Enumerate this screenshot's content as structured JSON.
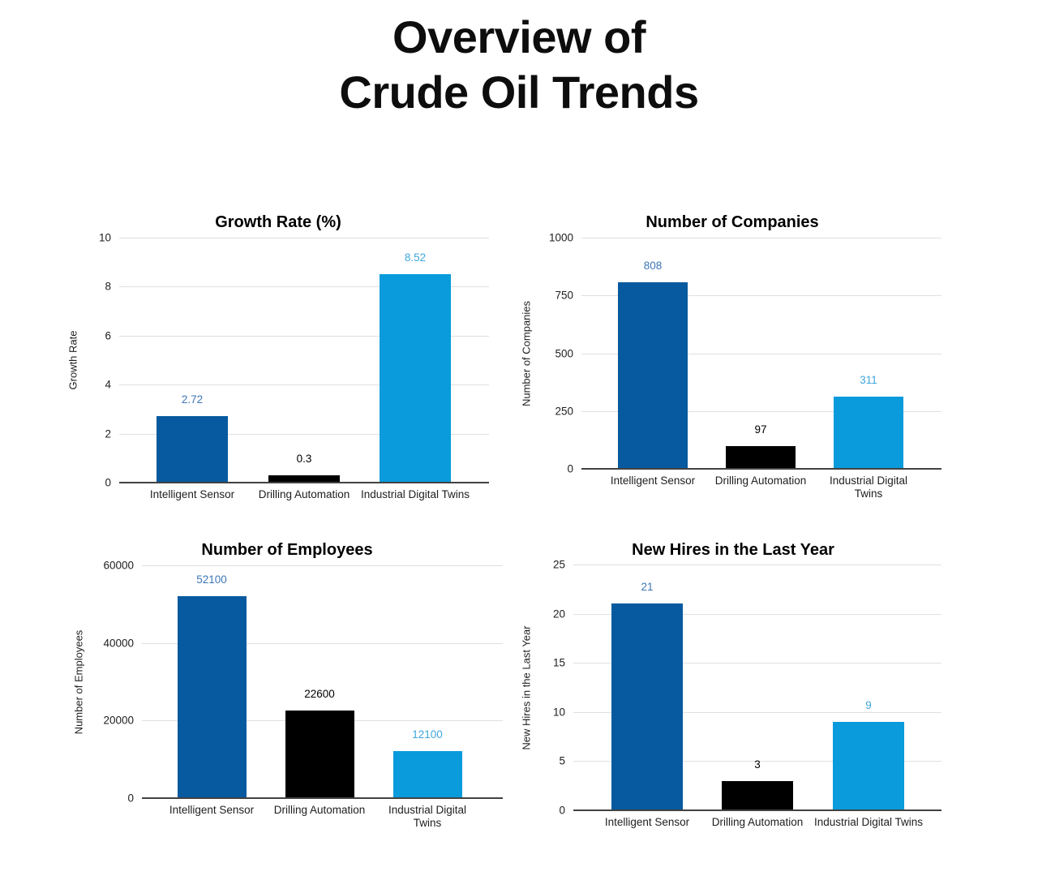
{
  "page": {
    "title_line1": "Overview of",
    "title_line2": "Crude Oil Trends"
  },
  "palette": {
    "series_dark_blue": "#075A9F",
    "series_black": "#000000",
    "series_light_blue": "#099BDB",
    "annotation_dark_blue": "#3C76B5",
    "annotation_black": "#000000",
    "annotation_light_blue": "#3EA6DD",
    "gridline": "#E0E0E0",
    "axis_line": "#424242",
    "axis_text": "#1E1E1E"
  },
  "chart_data": [
    {
      "type": "bar",
      "title": "Growth Rate (%)",
      "xlabel": "",
      "ylabel": "Growth Rate",
      "categories": [
        "Intelligent Sensor",
        "Drilling Automation",
        "Industrial Digital Twins"
      ],
      "values": [
        2.72,
        0.3,
        8.52
      ],
      "value_labels": [
        "2.72",
        "0.3",
        "8.52"
      ],
      "bar_colors": [
        "#075A9F",
        "#000000",
        "#099BDB"
      ],
      "label_colors": [
        "#3C76B5",
        "#000000",
        "#3EA6DD"
      ],
      "ylim": [
        0,
        10
      ],
      "yticks": [
        0,
        2,
        4,
        6,
        8,
        10
      ],
      "grid": true,
      "legend": "none"
    },
    {
      "type": "bar",
      "title": "Number of Companies",
      "xlabel": "",
      "ylabel": "Number of Companies",
      "categories": [
        "Intelligent Sensor",
        "Drilling Automation",
        "Industrial Digital Twins"
      ],
      "values": [
        808,
        97,
        311
      ],
      "value_labels": [
        "808",
        "97",
        "311"
      ],
      "bar_colors": [
        "#075A9F",
        "#000000",
        "#099BDB"
      ],
      "label_colors": [
        "#3C76B5",
        "#000000",
        "#3EA6DD"
      ],
      "ylim": [
        0,
        1000
      ],
      "yticks": [
        0,
        250,
        500,
        750,
        1000
      ],
      "grid": true,
      "legend": "none"
    },
    {
      "type": "bar",
      "title": "Number of Employees",
      "xlabel": "",
      "ylabel": "Number of Employees",
      "categories": [
        "Intelligent Sensor",
        "Drilling Automation",
        "Industrial Digital Twins"
      ],
      "values": [
        52100,
        22600,
        12100
      ],
      "value_labels": [
        "52100",
        "22600",
        "12100"
      ],
      "bar_colors": [
        "#075A9F",
        "#000000",
        "#099BDB"
      ],
      "label_colors": [
        "#3C76B5",
        "#000000",
        "#3EA6DD"
      ],
      "ylim": [
        0,
        60000
      ],
      "yticks": [
        0,
        20000,
        40000,
        60000
      ],
      "grid": true,
      "legend": "none"
    },
    {
      "type": "bar",
      "title": "New Hires in the Last Year",
      "xlabel": "",
      "ylabel": "New Hires in the Last Year",
      "categories": [
        "Intelligent Sensor",
        "Drilling Automation",
        "Industrial Digital Twins"
      ],
      "values": [
        21,
        3,
        9
      ],
      "value_labels": [
        "21",
        "3",
        "9"
      ],
      "bar_colors": [
        "#075A9F",
        "#000000",
        "#099BDB"
      ],
      "label_colors": [
        "#3C76B5",
        "#000000",
        "#3EA6DD"
      ],
      "ylim": [
        0,
        25
      ],
      "yticks": [
        0,
        5,
        10,
        15,
        20,
        25
      ],
      "grid": true,
      "legend": "none"
    }
  ]
}
